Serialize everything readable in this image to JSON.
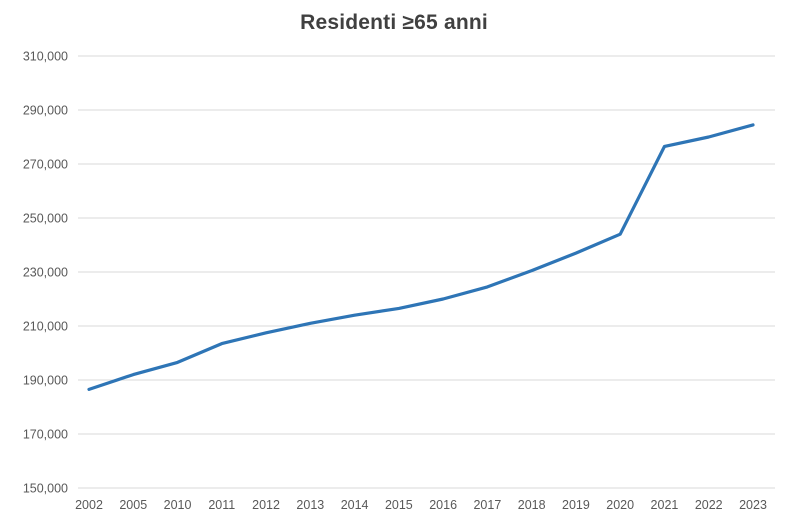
{
  "chart_data": {
    "type": "line",
    "title": "Residenti ≥65 anni",
    "categories": [
      "2002",
      "2005",
      "2010",
      "2011",
      "2012",
      "2013",
      "2014",
      "2015",
      "2016",
      "2017",
      "2018",
      "2019",
      "2020",
      "2021",
      "2022",
      "2023"
    ],
    "series": [
      {
        "name": "Residenti ≥65 anni",
        "values": [
          186500,
          192000,
          196500,
          203500,
          207500,
          211000,
          214000,
          216500,
          220000,
          224500,
          230500,
          237000,
          244000,
          276500,
          280000,
          284500
        ]
      }
    ],
    "xlabel": "",
    "ylabel": "",
    "ylim": [
      150000,
      310000
    ],
    "ytick_step": 20000,
    "ytick_labels": [
      "150,000",
      "170,000",
      "190,000",
      "210,000",
      "230,000",
      "250,000",
      "270,000",
      "290,000",
      "310,000"
    ],
    "grid": "horizontal",
    "legend": "none",
    "colors": {
      "line": "#2E75B6",
      "grid": "#D9D9D9",
      "axis_text": "#595959",
      "title_text": "#404040",
      "background": "#FFFFFF"
    }
  }
}
